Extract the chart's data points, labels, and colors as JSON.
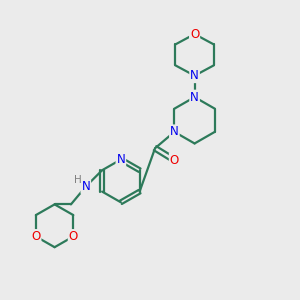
{
  "background_color": "#ebebeb",
  "bond_color": "#2d7a5a",
  "N_color": "#0000ee",
  "O_color": "#ee0000",
  "H_color": "#808080",
  "line_width": 1.6,
  "font_size": 8.5,
  "fig_w": 3.0,
  "fig_h": 3.0,
  "dpi": 100,
  "xlim": [
    0,
    10
  ],
  "ylim": [
    0,
    10
  ]
}
